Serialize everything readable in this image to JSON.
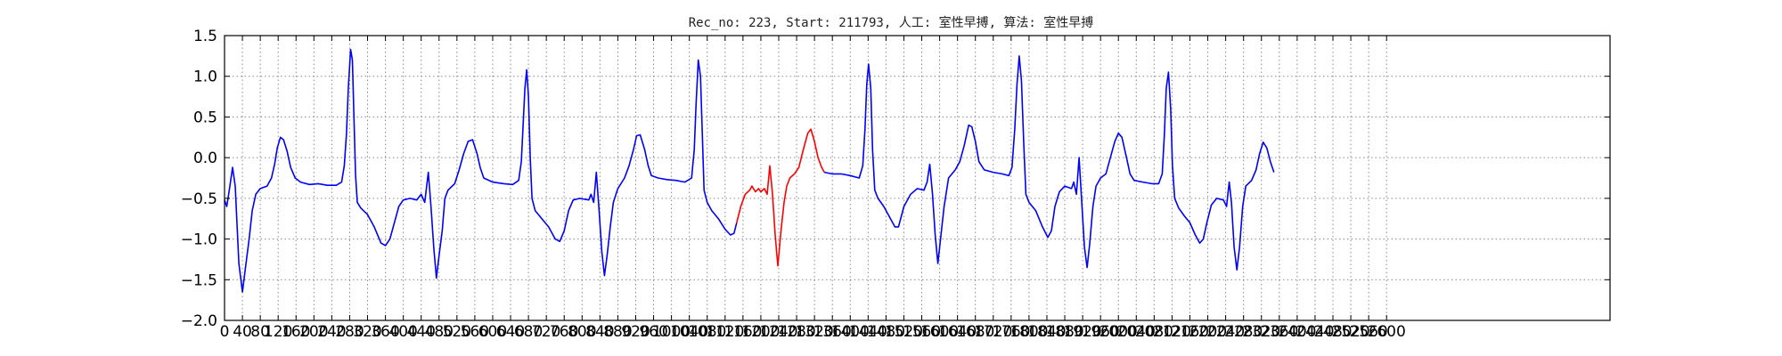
{
  "chart_data": {
    "type": "line",
    "title": "Rec_no: 223, Start: 211793, 人工: 室性早搏, 算法: 室性早搏",
    "xlabel": "",
    "ylabel": "",
    "xlim": [
      0,
      3100
    ],
    "ylim": [
      -2.0,
      1.5
    ],
    "grid": true,
    "x_ticks": [
      0,
      40,
      80,
      120,
      160,
      200,
      240,
      280,
      320,
      360,
      400,
      440,
      480,
      520,
      560,
      600,
      640,
      680,
      720,
      760,
      800,
      840,
      880,
      920,
      960,
      1000,
      1040,
      1080,
      1120,
      1160,
      1200,
      1240,
      1280,
      1320,
      1360,
      1400,
      1440,
      1480,
      1520,
      1560,
      1600,
      1640,
      1680,
      1720,
      1760,
      1800,
      1840,
      1880,
      1920,
      1960,
      2000,
      2040,
      2080,
      2120,
      2160,
      2200,
      2240,
      2280,
      2320,
      2360,
      2400,
      2440,
      2480,
      2520,
      2560,
      2600
    ],
    "y_ticks": [
      1.5,
      1.0,
      0.5,
      0.0,
      -0.5,
      -1.0,
      -1.5,
      -2.0
    ],
    "y_tick_labels": [
      "1.5",
      "1.0",
      "0.5",
      "0.0",
      "−0.5",
      "−1.0",
      "−1.5",
      "−2.0"
    ],
    "series": [
      {
        "color": "#0000ff",
        "points": [
          [
            0,
            -0.52
          ],
          [
            5,
            -0.6
          ],
          [
            12,
            -0.35
          ],
          [
            18,
            -0.12
          ],
          [
            24,
            -0.35
          ],
          [
            32,
            -1.3
          ],
          [
            40,
            -1.65
          ],
          [
            48,
            -1.3
          ],
          [
            55,
            -1.0
          ],
          [
            62,
            -0.65
          ],
          [
            70,
            -0.45
          ],
          [
            80,
            -0.38
          ],
          [
            95,
            -0.35
          ],
          [
            105,
            -0.25
          ],
          [
            112,
            -0.08
          ],
          [
            118,
            0.12
          ],
          [
            125,
            0.25
          ],
          [
            132,
            0.22
          ],
          [
            140,
            0.08
          ],
          [
            148,
            -0.12
          ],
          [
            158,
            -0.25
          ],
          [
            170,
            -0.3
          ],
          [
            190,
            -0.33
          ],
          [
            210,
            -0.32
          ],
          [
            230,
            -0.34
          ],
          [
            250,
            -0.34
          ],
          [
            262,
            -0.3
          ],
          [
            268,
            -0.1
          ],
          [
            273,
            0.3
          ],
          [
            277,
            0.85
          ],
          [
            282,
            1.33
          ],
          [
            286,
            1.2
          ],
          [
            289,
            0.6
          ],
          [
            293,
            -0.2
          ],
          [
            297,
            -0.55
          ],
          [
            305,
            -0.62
          ],
          [
            320,
            -0.7
          ],
          [
            335,
            -0.85
          ],
          [
            350,
            -1.05
          ],
          [
            360,
            -1.08
          ],
          [
            370,
            -1.0
          ],
          [
            380,
            -0.8
          ],
          [
            390,
            -0.6
          ],
          [
            400,
            -0.52
          ],
          [
            415,
            -0.5
          ],
          [
            430,
            -0.52
          ],
          [
            440,
            -0.45
          ],
          [
            448,
            -0.55
          ],
          [
            456,
            -0.18
          ],
          [
            462,
            -0.6
          ],
          [
            468,
            -1.1
          ],
          [
            474,
            -1.48
          ],
          [
            480,
            -1.2
          ],
          [
            487,
            -0.9
          ],
          [
            493,
            -0.5
          ],
          [
            500,
            -0.4
          ],
          [
            515,
            -0.32
          ],
          [
            525,
            -0.15
          ],
          [
            535,
            0.05
          ],
          [
            545,
            0.2
          ],
          [
            555,
            0.22
          ],
          [
            565,
            0.05
          ],
          [
            572,
            -0.12
          ],
          [
            580,
            -0.25
          ],
          [
            600,
            -0.3
          ],
          [
            625,
            -0.32
          ],
          [
            645,
            -0.33
          ],
          [
            658,
            -0.28
          ],
          [
            664,
            -0.05
          ],
          [
            668,
            0.4
          ],
          [
            672,
            0.85
          ],
          [
            676,
            1.08
          ],
          [
            680,
            0.75
          ],
          [
            684,
            0.0
          ],
          [
            688,
            -0.5
          ],
          [
            695,
            -0.65
          ],
          [
            710,
            -0.75
          ],
          [
            725,
            -0.85
          ],
          [
            740,
            -1.0
          ],
          [
            750,
            -1.03
          ],
          [
            760,
            -0.9
          ],
          [
            770,
            -0.65
          ],
          [
            780,
            -0.52
          ],
          [
            795,
            -0.5
          ],
          [
            815,
            -0.52
          ],
          [
            820,
            -0.45
          ],
          [
            826,
            -0.55
          ],
          [
            832,
            -0.18
          ],
          [
            838,
            -0.65
          ],
          [
            844,
            -1.15
          ],
          [
            850,
            -1.45
          ],
          [
            856,
            -1.2
          ],
          [
            863,
            -0.85
          ],
          [
            870,
            -0.55
          ],
          [
            880,
            -0.38
          ],
          [
            895,
            -0.25
          ],
          [
            905,
            -0.1
          ],
          [
            915,
            0.1
          ],
          [
            922,
            0.27
          ],
          [
            930,
            0.28
          ],
          [
            940,
            0.1
          ],
          [
            948,
            -0.1
          ],
          [
            955,
            -0.22
          ],
          [
            970,
            -0.25
          ],
          [
            990,
            -0.27
          ],
          [
            1010,
            -0.28
          ],
          [
            1030,
            -0.3
          ],
          [
            1045,
            -0.25
          ],
          [
            1051,
            0.1
          ],
          [
            1055,
            0.65
          ],
          [
            1060,
            1.2
          ],
          [
            1065,
            1.0
          ],
          [
            1069,
            0.3
          ],
          [
            1073,
            -0.4
          ],
          [
            1080,
            -0.55
          ],
          [
            1090,
            -0.65
          ],
          [
            1105,
            -0.75
          ],
          [
            1120,
            -0.88
          ],
          [
            1132,
            -0.95
          ],
          [
            1140,
            -0.93
          ],
          [
            1146,
            -0.8
          ]
        ]
      },
      {
        "color": "#ff0000",
        "points": [
          [
            1146,
            -0.8
          ],
          [
            1155,
            -0.6
          ],
          [
            1165,
            -0.45
          ],
          [
            1175,
            -0.4
          ],
          [
            1180,
            -0.35
          ],
          [
            1188,
            -0.42
          ],
          [
            1195,
            -0.38
          ],
          [
            1200,
            -0.42
          ],
          [
            1208,
            -0.38
          ],
          [
            1214,
            -0.45
          ],
          [
            1220,
            -0.1
          ],
          [
            1226,
            -0.45
          ],
          [
            1232,
            -0.95
          ],
          [
            1238,
            -1.33
          ],
          [
            1245,
            -0.9
          ],
          [
            1252,
            -0.55
          ],
          [
            1258,
            -0.35
          ],
          [
            1265,
            -0.25
          ],
          [
            1275,
            -0.2
          ],
          [
            1285,
            -0.12
          ],
          [
            1295,
            0.1
          ],
          [
            1305,
            0.3
          ],
          [
            1312,
            0.35
          ],
          [
            1320,
            0.2
          ],
          [
            1328,
            0.0
          ],
          [
            1336,
            -0.12
          ],
          [
            1342,
            -0.18
          ]
        ]
      },
      {
        "color": "#0000ff",
        "points": [
          [
            1342,
            -0.18
          ],
          [
            1360,
            -0.2
          ],
          [
            1380,
            -0.2
          ],
          [
            1400,
            -0.22
          ],
          [
            1420,
            -0.25
          ],
          [
            1428,
            -0.1
          ],
          [
            1433,
            0.35
          ],
          [
            1437,
            0.9
          ],
          [
            1441,
            1.15
          ],
          [
            1446,
            0.85
          ],
          [
            1450,
            0.1
          ],
          [
            1455,
            -0.4
          ],
          [
            1462,
            -0.5
          ],
          [
            1475,
            -0.6
          ],
          [
            1490,
            -0.75
          ],
          [
            1500,
            -0.85
          ],
          [
            1508,
            -0.85
          ],
          [
            1520,
            -0.6
          ],
          [
            1535,
            -0.45
          ],
          [
            1550,
            -0.38
          ],
          [
            1565,
            -0.4
          ],
          [
            1572,
            -0.3
          ],
          [
            1578,
            -0.08
          ],
          [
            1584,
            -0.45
          ],
          [
            1590,
            -0.95
          ],
          [
            1596,
            -1.3
          ],
          [
            1602,
            -1.0
          ],
          [
            1610,
            -0.6
          ],
          [
            1620,
            -0.25
          ],
          [
            1635,
            -0.15
          ],
          [
            1645,
            -0.05
          ],
          [
            1655,
            0.15
          ],
          [
            1665,
            0.4
          ],
          [
            1672,
            0.38
          ],
          [
            1680,
            0.2
          ],
          [
            1688,
            -0.05
          ],
          [
            1700,
            -0.15
          ],
          [
            1720,
            -0.18
          ],
          [
            1740,
            -0.2
          ],
          [
            1755,
            -0.22
          ],
          [
            1762,
            -0.12
          ],
          [
            1768,
            0.35
          ],
          [
            1773,
            0.9
          ],
          [
            1778,
            1.25
          ],
          [
            1783,
            0.95
          ],
          [
            1788,
            0.2
          ],
          [
            1793,
            -0.45
          ],
          [
            1800,
            -0.55
          ],
          [
            1815,
            -0.65
          ],
          [
            1830,
            -0.85
          ],
          [
            1842,
            -0.98
          ],
          [
            1850,
            -0.9
          ],
          [
            1858,
            -0.6
          ],
          [
            1868,
            -0.42
          ],
          [
            1880,
            -0.35
          ],
          [
            1895,
            -0.38
          ],
          [
            1900,
            -0.3
          ],
          [
            1906,
            -0.45
          ],
          [
            1912,
            0.0
          ],
          [
            1918,
            -0.55
          ],
          [
            1924,
            -1.1
          ],
          [
            1930,
            -1.35
          ],
          [
            1936,
            -1.05
          ],
          [
            1943,
            -0.6
          ],
          [
            1950,
            -0.35
          ],
          [
            1960,
            -0.25
          ],
          [
            1972,
            -0.2
          ],
          [
            1982,
            0.0
          ],
          [
            1992,
            0.2
          ],
          [
            2000,
            0.3
          ],
          [
            2008,
            0.25
          ],
          [
            2018,
            0.0
          ],
          [
            2026,
            -0.2
          ],
          [
            2035,
            -0.28
          ],
          [
            2055,
            -0.3
          ],
          [
            2075,
            -0.32
          ],
          [
            2090,
            -0.32
          ],
          [
            2098,
            -0.2
          ],
          [
            2103,
            0.3
          ],
          [
            2107,
            0.85
          ],
          [
            2112,
            1.05
          ],
          [
            2117,
            0.6
          ],
          [
            2121,
            -0.1
          ],
          [
            2126,
            -0.5
          ],
          [
            2135,
            -0.62
          ],
          [
            2148,
            -0.72
          ],
          [
            2160,
            -0.8
          ],
          [
            2172,
            -0.95
          ],
          [
            2182,
            -1.05
          ],
          [
            2190,
            -1.0
          ],
          [
            2198,
            -0.8
          ],
          [
            2208,
            -0.58
          ],
          [
            2220,
            -0.5
          ],
          [
            2235,
            -0.52
          ],
          [
            2242,
            -0.6
          ],
          [
            2248,
            -0.3
          ],
          [
            2253,
            -0.55
          ],
          [
            2259,
            -1.1
          ],
          [
            2265,
            -1.38
          ],
          [
            2271,
            -1.1
          ],
          [
            2278,
            -0.6
          ],
          [
            2285,
            -0.35
          ],
          [
            2298,
            -0.28
          ],
          [
            2308,
            -0.15
          ],
          [
            2316,
            0.05
          ],
          [
            2324,
            0.19
          ],
          [
            2332,
            0.12
          ],
          [
            2340,
            -0.05
          ],
          [
            2348,
            -0.18
          ]
        ]
      }
    ]
  }
}
